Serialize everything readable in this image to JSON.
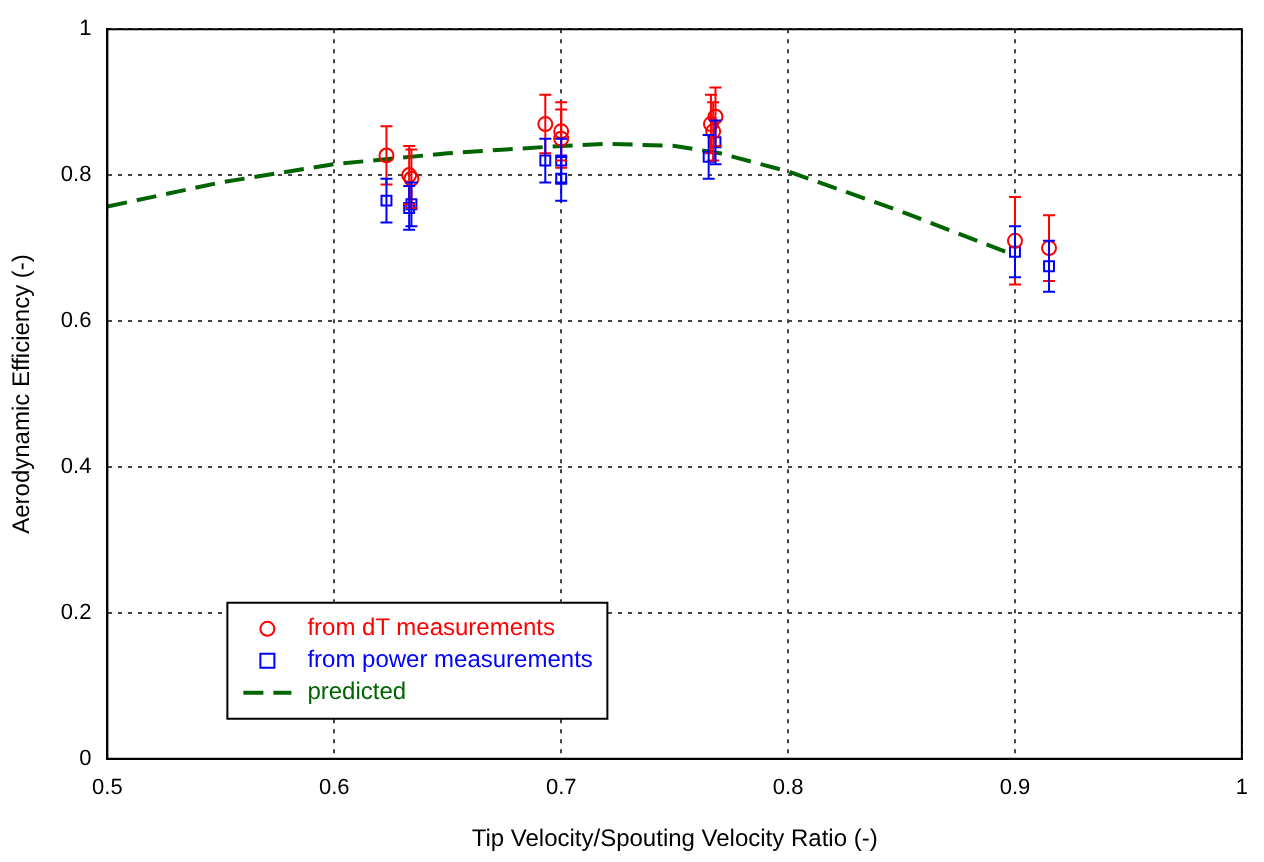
{
  "chart_data": {
    "type": "scatter",
    "xlabel": "Tip Velocity/Spouting Velocity Ratio (-)",
    "ylabel": "Aerodynamic Efficiency (-)",
    "xlim": [
      0.5,
      1
    ],
    "xticks": [
      0.5,
      0.6,
      0.7,
      0.8,
      0.9,
      1
    ],
    "ylim": [
      0,
      1
    ],
    "yticks": [
      0,
      0.2,
      0.4,
      0.6,
      0.8,
      1
    ],
    "grid": true,
    "legend": "bottom left",
    "series": [
      {
        "name": "from dT measurements",
        "marker": "circle",
        "color": "#ff0000",
        "x": [
          0.623,
          0.633,
          0.634,
          0.693,
          0.7,
          0.7,
          0.766,
          0.768,
          0.767,
          0.9,
          0.915
        ],
        "values": [
          0.827,
          0.8,
          0.795,
          0.87,
          0.86,
          0.85,
          0.87,
          0.88,
          0.86,
          0.71,
          0.7
        ],
        "errors": [
          0.04,
          0.04,
          0.04,
          0.04,
          0.04,
          0.04,
          0.04,
          0.04,
          0.04,
          0.06,
          0.045
        ]
      },
      {
        "name": "from power measurements",
        "marker": "square",
        "color": "#0000ff",
        "x": [
          0.623,
          0.633,
          0.634,
          0.693,
          0.7,
          0.7,
          0.765,
          0.768,
          0.9,
          0.915
        ],
        "values": [
          0.765,
          0.755,
          0.76,
          0.82,
          0.82,
          0.795,
          0.825,
          0.845,
          0.695,
          0.675
        ],
        "errors": [
          0.03,
          0.03,
          0.03,
          0.03,
          0.03,
          0.03,
          0.03,
          0.03,
          0.035,
          0.035
        ]
      },
      {
        "name": "predicted",
        "type": "line",
        "marker": "none",
        "line_style": "dashed",
        "color": "#006400",
        "x": [
          0.5,
          0.55,
          0.6,
          0.65,
          0.7,
          0.72,
          0.75,
          0.77,
          0.8,
          0.85,
          0.9
        ],
        "values": [
          0.757,
          0.79,
          0.815,
          0.83,
          0.84,
          0.843,
          0.84,
          0.83,
          0.805,
          0.75,
          0.69
        ]
      }
    ]
  }
}
